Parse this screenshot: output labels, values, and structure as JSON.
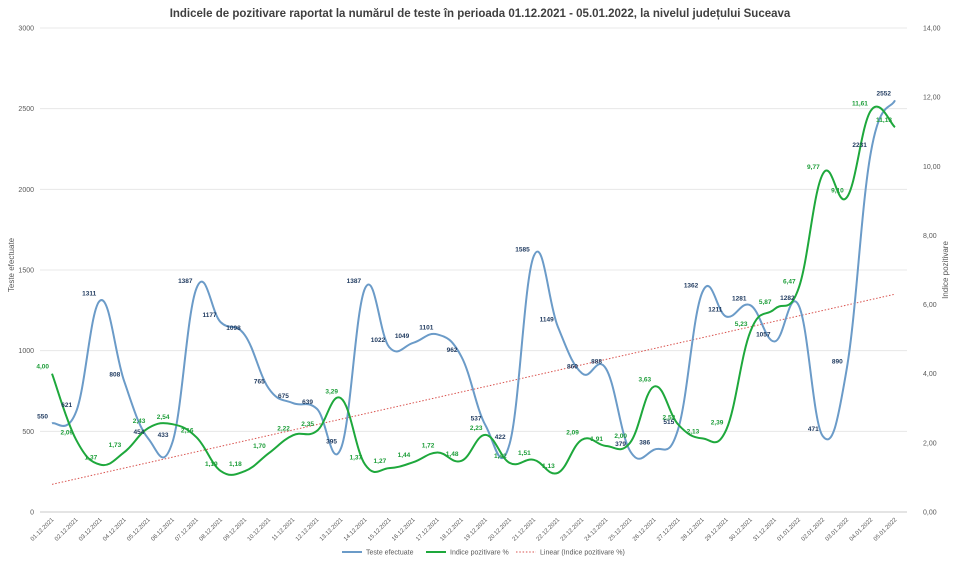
{
  "chart_data": {
    "type": "line",
    "title": "Indicele de pozitivare  raportat la numărul  de teste în perioada  01.12.2021 - 05.01.2022, la nivelul județului  Suceava",
    "ylabel": "Teste efectuate",
    "y2label": "Indice pozitivare",
    "ylim": [
      0,
      3000
    ],
    "y2lim": [
      0,
      14
    ],
    "yticks": [
      "0",
      "500",
      "1000",
      "1500",
      "2000",
      "2500",
      "3000"
    ],
    "y2ticks": [
      "0,00",
      "2,00",
      "4,00",
      "6,00",
      "8,00",
      "10,00",
      "12,00",
      "14,00"
    ],
    "categories": [
      "01.12.2021",
      "02.12.2021",
      "03.12.2021",
      "04.12.2021",
      "05.12.2021",
      "06.12.2021",
      "07.12.2021",
      "08.12.2021",
      "09.12.2021",
      "10.12.2021",
      "11.12.2021",
      "12.12.2021",
      "13.12.2021",
      "14.12.2021",
      "15.12.2021",
      "16.12.2021",
      "17.12.2021",
      "18.12.2021",
      "19.12.2021",
      "20.12.2021",
      "21.12.2021",
      "22.12.2021",
      "23.12.2021",
      "24.12.2021",
      "25.12.2021",
      "26.12.2021",
      "27.12.2021",
      "28.12.2021",
      "29.12.2021",
      "30.12.2021",
      "31.12.2021",
      "01.01.2022",
      "02.01.2022",
      "03.01.2022",
      "04.01.2022",
      "05.01.2022"
    ],
    "series": [
      {
        "name": "Teste efectuate",
        "axis": "left",
        "color": "#6b9bc8",
        "values": [
          550,
          621,
          1311,
          808,
          454,
          433,
          1387,
          1177,
          1098,
          765,
          675,
          639,
          395,
          1387,
          1022,
          1049,
          1101,
          962,
          537,
          422,
          1585,
          1149,
          860,
          888,
          379,
          386,
          515,
          1362,
          1211,
          1281,
          1057,
          1282,
          471,
          890,
          2231,
          2552
        ],
        "labels": [
          "550",
          "621",
          "1311",
          "808",
          "454",
          "433",
          "1387",
          "1177",
          "1098",
          "765",
          "675",
          "639",
          "395",
          "1387",
          "1022",
          "1049",
          "1101",
          "962",
          "537",
          "422",
          "1585",
          "1149",
          "860",
          "888",
          "379",
          "386",
          "515",
          "1362",
          "1211",
          "1281",
          "1057",
          "1282",
          "471",
          "890",
          "2231",
          "2552"
        ]
      },
      {
        "name": "Indice pozitivare %",
        "axis": "right",
        "color": "#1ea83c",
        "values": [
          4.0,
          2.09,
          1.37,
          1.73,
          2.43,
          2.54,
          2.16,
          1.19,
          1.18,
          1.7,
          2.22,
          2.35,
          3.29,
          1.37,
          1.27,
          1.44,
          1.72,
          1.48,
          2.23,
          1.42,
          1.51,
          1.13,
          2.09,
          1.91,
          2.0,
          3.63,
          2.53,
          2.13,
          2.39,
          5.23,
          5.87,
          6.47,
          9.77,
          9.1,
          11.61,
          11.13
        ],
        "labels": [
          "4,00",
          "2,09",
          "1,37",
          "1,73",
          "2,43",
          "2,54",
          "2,16",
          "1,19",
          "1,18",
          "1,70",
          "2,22",
          "2,35",
          "3,29",
          "1,37",
          "1,27",
          "1,44",
          "1,72",
          "1,48",
          "2,23",
          "1,42",
          "1,51",
          "1,13",
          "2,09",
          "1,91",
          "2,00",
          "3,63",
          "2,53",
          "2,13",
          "2,39",
          "5,23",
          "5,87",
          "6,47",
          "9,77",
          "9,10",
          "11,61",
          "11,13"
        ]
      },
      {
        "name": "Linear (Indice pozitivare %)",
        "axis": "right",
        "color": "#d9534f",
        "style": "dotted",
        "trend_start": 0.8,
        "trend_end": 6.3
      }
    ],
    "grid": true,
    "legend": "bottom"
  }
}
